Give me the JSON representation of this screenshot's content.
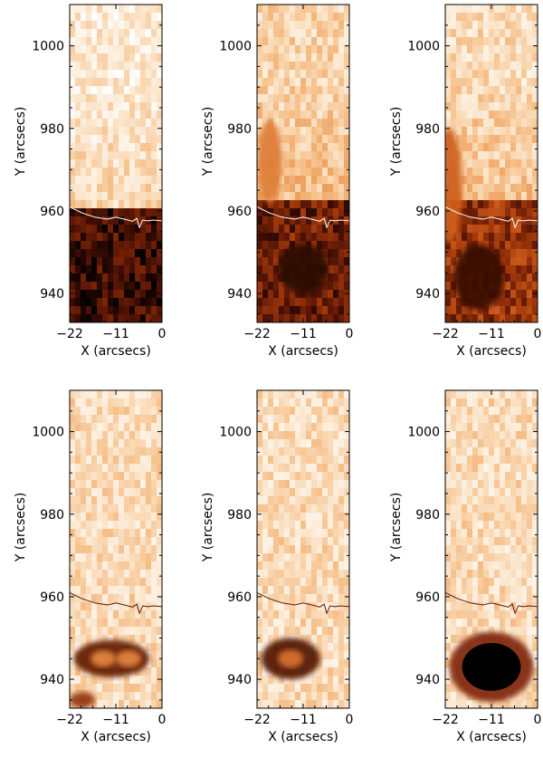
{
  "chart_data": {
    "type": "heatmap",
    "grid": false,
    "legend": "none",
    "colormap": [
      "#ffffff",
      "#fbe6cc",
      "#f6c08a",
      "#e9934e",
      "#d2611f",
      "#a73c0c",
      "#6e1e06",
      "#3a0c03",
      "#000000"
    ],
    "xlabel": "X (arcsecs)",
    "ylabel": "Y (arcsecs)",
    "xlim": [
      -22,
      0
    ],
    "ylim": [
      933,
      1010
    ],
    "xticks": [
      "−22",
      "−11",
      "0"
    ],
    "xtick_values": [
      -22,
      -11,
      0
    ],
    "yticks": [
      "940",
      "960",
      "980",
      "1000"
    ],
    "ytick_values": [
      940,
      960,
      980,
      1000
    ],
    "limb_contour": {
      "x": [
        -22,
        -19,
        -16,
        -13,
        -11,
        -9,
        -7,
        -6,
        -5.4,
        -4.6,
        -3.5,
        -2,
        0
      ],
      "y": [
        961,
        959.5,
        958.5,
        958,
        958.5,
        958,
        957.5,
        958.2,
        956,
        957.8,
        957.6,
        957.8,
        957.6
      ]
    },
    "panels": [
      {
        "name": "",
        "row": 1,
        "col": 1,
        "limb_color": "#ffffff",
        "components": [
          {
            "kind": "above",
            "level": 0.1
          },
          {
            "kind": "below",
            "level": 0.86,
            "edge": 960
          }
        ]
      },
      {
        "name": "",
        "row": 1,
        "col": 2,
        "limb_color": "#ffffff",
        "components": [
          {
            "kind": "above",
            "level": 0.18
          },
          {
            "kind": "below",
            "level": 0.76,
            "edge": 962
          },
          {
            "kind": "blob",
            "cx": -19,
            "cy": 972,
            "rx": 3,
            "ry": 10,
            "level": 0.25
          },
          {
            "kind": "blob",
            "cx": -11,
            "cy": 946,
            "rx": 6,
            "ry": 6,
            "level": 0.15
          }
        ]
      },
      {
        "name": "",
        "row": 1,
        "col": 3,
        "limb_color": "#ffffff",
        "components": [
          {
            "kind": "above",
            "level": 0.16
          },
          {
            "kind": "below",
            "level": 0.66,
            "edge": 963
          },
          {
            "kind": "blob",
            "cx": -21,
            "cy": 966,
            "rx": 3,
            "ry": 14,
            "level": 0.35
          },
          {
            "kind": "blob",
            "cx": -14,
            "cy": 944,
            "rx": 6,
            "ry": 8,
            "level": 0.22
          }
        ]
      },
      {
        "name": "",
        "row": 2,
        "col": 1,
        "limb_color": "#5a1a10",
        "components": [
          {
            "kind": "background",
            "level": 0.16
          },
          {
            "kind": "blob",
            "cx": -12,
            "cy": 945,
            "rx": 9,
            "ry": 4.5,
            "level": 0.62
          },
          {
            "kind": "blob",
            "cx": -14,
            "cy": 945,
            "rx": 3,
            "ry": 2,
            "level": 0.25
          },
          {
            "kind": "blob",
            "cx": -8,
            "cy": 945,
            "rx": 3,
            "ry": 2,
            "level": 0.25
          },
          {
            "kind": "blob",
            "cx": -19,
            "cy": 935,
            "rx": 3,
            "ry": 2,
            "level": 0.5
          }
        ]
      },
      {
        "name": "",
        "row": 2,
        "col": 2,
        "limb_color": "#5a1a10",
        "components": [
          {
            "kind": "background",
            "level": 0.16
          },
          {
            "kind": "blob",
            "cx": -14,
            "cy": 945,
            "rx": 7,
            "ry": 5,
            "level": 0.66
          },
          {
            "kind": "blob",
            "cx": -14,
            "cy": 945,
            "rx": 3,
            "ry": 2.2,
            "level": 0.3
          }
        ]
      },
      {
        "name": "",
        "row": 2,
        "col": 3,
        "limb_color": "#5a1a10",
        "components": [
          {
            "kind": "background",
            "level": 0.16
          },
          {
            "kind": "blob",
            "cx": -11,
            "cy": 943,
            "rx": 10,
            "ry": 8.5,
            "level": 0.55
          },
          {
            "kind": "core",
            "cx": -11,
            "cy": 943,
            "rx": 7,
            "ry": 5.8
          }
        ]
      }
    ]
  }
}
